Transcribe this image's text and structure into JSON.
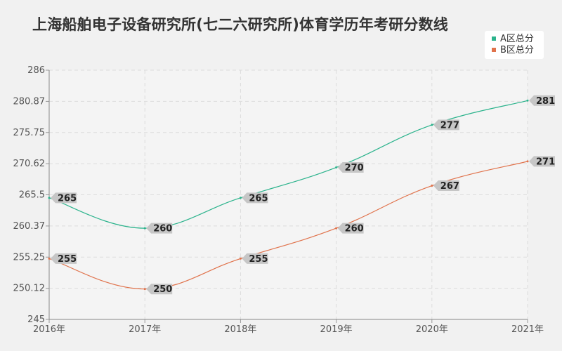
{
  "chart_data": {
    "type": "line",
    "title": "上海船舶电子设备研究所(七二六研究所)体育学历年考研分数线",
    "x": [
      "2016年",
      "2017年",
      "2018年",
      "2019年",
      "2020年",
      "2021年"
    ],
    "ylim": [
      245,
      286
    ],
    "yticks": [
      "245",
      "250.12",
      "255.25",
      "260.37",
      "265.5",
      "270.62",
      "275.75",
      "280.87",
      "286"
    ],
    "grid": true,
    "legend_position": "top-right",
    "series": [
      {
        "name": "A区总分",
        "color": "#2bb38c",
        "values": [
          265,
          260,
          265,
          270,
          277,
          281
        ]
      },
      {
        "name": "B区总分",
        "color": "#e0724b",
        "values": [
          255,
          250,
          255,
          260,
          267,
          271
        ]
      }
    ]
  }
}
